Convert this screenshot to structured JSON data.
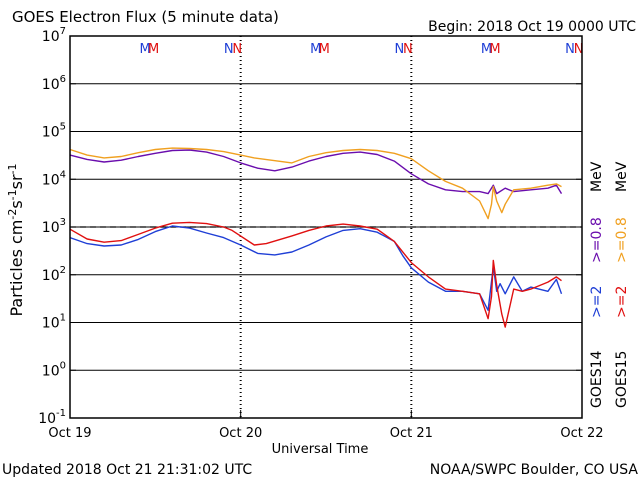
{
  "header": {
    "title": "GOES Electron Flux (5 minute data)",
    "begin": "Begin: 2018 Oct 19 0000 UTC"
  },
  "footer": {
    "updated": "Updated 2018 Oct 21 21:31:02 UTC",
    "credit": "NOAA/SWPC Boulder, CO USA"
  },
  "legend": {
    "goes14": "GOES14",
    "goes15": "GOES15",
    "ge2_a": ">=2",
    "ge08_a": ">=0.8",
    "ge2_b": ">=2",
    "ge08_b": ">=0.8",
    "mev": "MeV"
  },
  "colors": {
    "goes14_ge2": "#1f3fd6",
    "goes15_ge2": "#e01010",
    "goes14_ge08": "#6a0dad",
    "goes15_ge08": "#f0a020",
    "threshold": "#000000",
    "marker_M_blue": "#1f3fd6",
    "marker_M_red": "#e01010"
  },
  "chart_data": {
    "type": "line",
    "title": "GOES Electron Flux (5 minute data)",
    "xlabel": "Universal Time",
    "ylabel": "Particles cm-2s-1sr-1",
    "y_scale": "log",
    "ylim": [
      0.1,
      10000000
    ],
    "xlim": [
      0,
      3
    ],
    "x_units": "days since 2018 Oct 19 0000 UTC",
    "x_ticks": [
      "Oct 19",
      "Oct 20",
      "Oct 21",
      "Oct 22"
    ],
    "y_ticks": [
      "10^7",
      "10^6",
      "10^5",
      "10^4",
      "10^3",
      "10^2",
      "10^1",
      "10^0",
      "10^-1"
    ],
    "threshold_line": 1000,
    "markers": [
      {
        "day": 0.44,
        "label": "M",
        "color": "#1f3fd6"
      },
      {
        "day": 0.49,
        "label": "M",
        "color": "#e01010"
      },
      {
        "day": 0.93,
        "label": "N",
        "color": "#1f3fd6"
      },
      {
        "day": 0.98,
        "label": "N",
        "color": "#e01010"
      },
      {
        "day": 1.44,
        "label": "M",
        "color": "#1f3fd6"
      },
      {
        "day": 1.49,
        "label": "M",
        "color": "#e01010"
      },
      {
        "day": 1.93,
        "label": "N",
        "color": "#1f3fd6"
      },
      {
        "day": 1.98,
        "label": "N",
        "color": "#e01010"
      },
      {
        "day": 2.44,
        "label": "M",
        "color": "#1f3fd6"
      },
      {
        "day": 2.49,
        "label": "M",
        "color": "#e01010"
      },
      {
        "day": 2.93,
        "label": "N",
        "color": "#1f3fd6"
      },
      {
        "day": 2.98,
        "label": "N",
        "color": "#e01010"
      }
    ],
    "series": [
      {
        "name": "GOES14 >=2 MeV",
        "color": "#1f3fd6",
        "x": [
          0.0,
          0.1,
          0.2,
          0.3,
          0.4,
          0.5,
          0.6,
          0.7,
          0.8,
          0.9,
          1.0,
          1.1,
          1.2,
          1.3,
          1.4,
          1.5,
          1.6,
          1.7,
          1.8,
          1.9,
          1.95,
          2.0,
          2.1,
          2.2,
          2.3,
          2.4,
          2.45,
          2.48,
          2.5,
          2.52,
          2.55,
          2.6,
          2.65,
          2.7,
          2.8,
          2.85,
          2.88
        ],
        "y": [
          600,
          450,
          400,
          420,
          550,
          800,
          1050,
          950,
          750,
          600,
          420,
          280,
          260,
          300,
          420,
          620,
          850,
          920,
          780,
          500,
          250,
          140,
          70,
          45,
          45,
          40,
          18,
          150,
          45,
          65,
          40,
          90,
          45,
          55,
          45,
          80,
          40
        ]
      },
      {
        "name": "GOES15 >=2 MeV",
        "color": "#e01010",
        "x": [
          0.0,
          0.1,
          0.2,
          0.3,
          0.4,
          0.5,
          0.6,
          0.7,
          0.8,
          0.9,
          0.95,
          1.08,
          1.15,
          1.3,
          1.4,
          1.5,
          1.6,
          1.7,
          1.8,
          1.9,
          2.0,
          2.1,
          2.2,
          2.3,
          2.4,
          2.45,
          2.47,
          2.48,
          2.5,
          2.53,
          2.55,
          2.6,
          2.65,
          2.7,
          2.8,
          2.85,
          2.88
        ],
        "y": [
          900,
          560,
          480,
          520,
          700,
          950,
          1200,
          1250,
          1180,
          1000,
          850,
          420,
          450,
          650,
          850,
          1050,
          1150,
          1050,
          900,
          500,
          180,
          90,
          50,
          45,
          40,
          12,
          35,
          200,
          60,
          15,
          8,
          50,
          45,
          50,
          70,
          90,
          75
        ]
      },
      {
        "name": "GOES14 >=0.8 MeV",
        "color": "#6a0dad",
        "x": [
          0.0,
          0.1,
          0.2,
          0.3,
          0.4,
          0.5,
          0.6,
          0.7,
          0.8,
          0.9,
          1.0,
          1.1,
          1.2,
          1.3,
          1.4,
          1.5,
          1.6,
          1.7,
          1.8,
          1.9,
          2.0,
          2.1,
          2.2,
          2.3,
          2.4,
          2.45,
          2.48,
          2.5,
          2.55,
          2.6,
          2.7,
          2.8,
          2.85,
          2.88
        ],
        "y": [
          32000,
          26000,
          23000,
          25000,
          30000,
          35000,
          40000,
          41000,
          37000,
          30000,
          22000,
          17000,
          15000,
          18000,
          24000,
          30000,
          35000,
          37000,
          33000,
          24000,
          13000,
          8000,
          6000,
          5500,
          5500,
          5000,
          7500,
          5000,
          6500,
          5500,
          6000,
          6500,
          7500,
          5000
        ]
      },
      {
        "name": "GOES15 >=0.8 MeV",
        "color": "#f0a020",
        "x": [
          0.0,
          0.1,
          0.2,
          0.3,
          0.4,
          0.5,
          0.6,
          0.7,
          0.8,
          0.9,
          1.0,
          1.08,
          1.3,
          1.4,
          1.5,
          1.6,
          1.7,
          1.8,
          1.9,
          2.0,
          2.1,
          2.2,
          2.3,
          2.4,
          2.45,
          2.47,
          2.48,
          2.5,
          2.53,
          2.55,
          2.6,
          2.7,
          2.8,
          2.85,
          2.88
        ],
        "y": [
          42000,
          32000,
          28000,
          30000,
          36000,
          42000,
          45000,
          44000,
          42000,
          38000,
          32000,
          28000,
          22000,
          30000,
          36000,
          40000,
          42000,
          40000,
          35000,
          27000,
          15000,
          9000,
          6500,
          3500,
          1500,
          3000,
          7000,
          3500,
          2000,
          3000,
          6000,
          6500,
          7500,
          8000,
          7000
        ]
      }
    ]
  }
}
